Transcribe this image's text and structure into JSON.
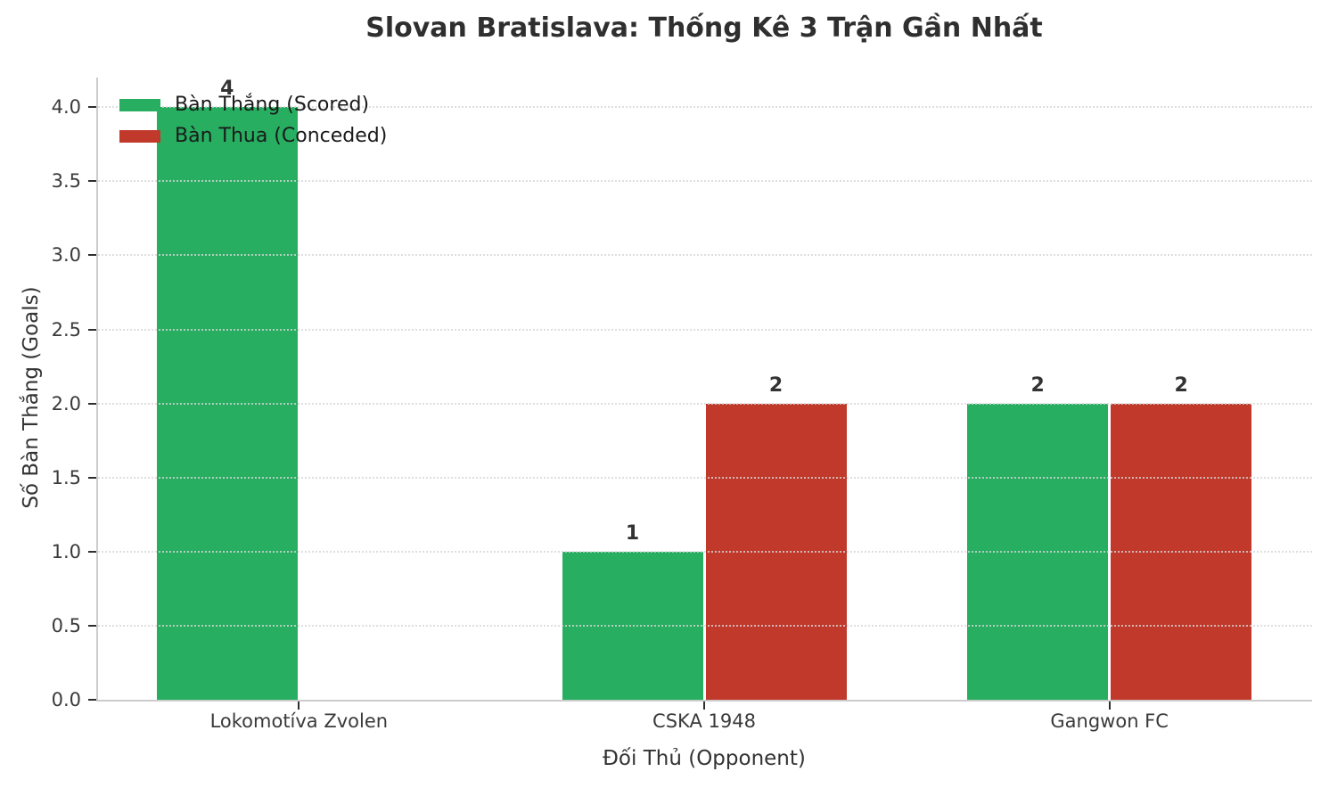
{
  "chart_data": {
    "type": "bar",
    "title": "Slovan Bratislava: Thống Kê 3 Trận Gần Nhất",
    "xlabel": "Đối Thủ (Opponent)",
    "ylabel": "Số Bàn Thắng (Goals)",
    "categories": [
      "Lokomotíva Zvolen",
      "CSKA 1948",
      "Gangwon FC"
    ],
    "series": [
      {
        "name": "Bàn Thắng (Scored)",
        "color": "#27ae60",
        "values": [
          4,
          1,
          2
        ]
      },
      {
        "name": "Bàn Thua (Conceded)",
        "color": "#c0392b",
        "values": [
          0,
          2,
          2
        ]
      }
    ],
    "value_labels_shown": [
      "4",
      "1",
      "2",
      "2",
      "2"
    ],
    "ylim": [
      0,
      4.2
    ],
    "yticks": [
      0.0,
      0.5,
      1.0,
      1.5,
      2.0,
      2.5,
      3.0,
      3.5,
      4.0
    ],
    "grid": "y-dotted",
    "legend_position": "upper-left"
  },
  "colors": {
    "scored_green": "#27ae60",
    "conceded_red": "#c0392b",
    "gridline": "#d6d6d6",
    "spine": "#cccccc",
    "tick_text": "#3a3a3a",
    "title_text": "#2f2f2f"
  }
}
